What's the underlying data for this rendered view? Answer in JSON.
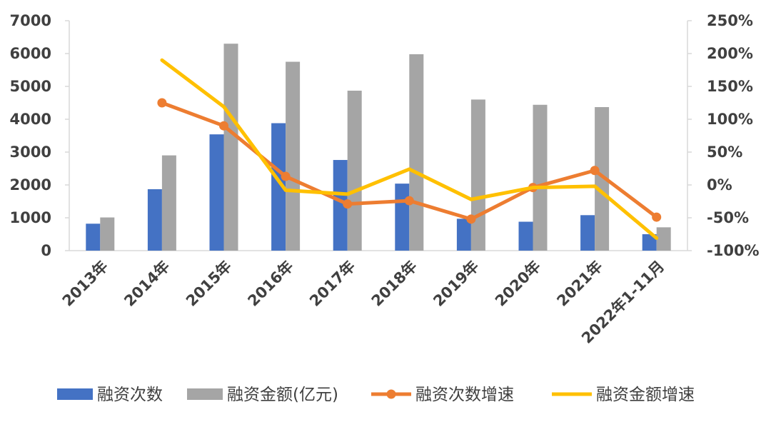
{
  "chart_data": {
    "type": "bar",
    "categories": [
      "2013年",
      "2014年",
      "2015年",
      "2016年",
      "2017年",
      "2018年",
      "2019年",
      "2020年",
      "2021年",
      "2022年1-11月"
    ],
    "series": [
      {
        "name": "融资次数",
        "type": "bar",
        "axis": "left",
        "color": "#4472C4",
        "values": [
          820,
          1870,
          3540,
          3880,
          2760,
          2040,
          970,
          880,
          1080,
          500
        ]
      },
      {
        "name": "融资金额(亿元)",
        "type": "bar",
        "axis": "left",
        "color": "#A5A5A5",
        "values": [
          1010,
          2900,
          6300,
          5750,
          4870,
          5980,
          4600,
          4440,
          4370,
          710
        ]
      },
      {
        "name": "融资次数增速",
        "type": "line",
        "axis": "right",
        "color": "#ED7D31",
        "markers": true,
        "values": [
          null,
          125,
          90,
          13,
          -29,
          -24,
          -52,
          -4,
          22,
          -49
        ]
      },
      {
        "name": "融资金额增速",
        "type": "line",
        "axis": "right",
        "color": "#FFC000",
        "markers": false,
        "values": [
          null,
          190,
          119,
          -8,
          -14,
          24,
          -22,
          -4,
          -2,
          -81
        ]
      }
    ],
    "y_left": {
      "min": 0,
      "max": 7000,
      "step": 1000,
      "tick_labels": [
        "0",
        "1000",
        "2000",
        "3000",
        "4000",
        "5000",
        "6000",
        "7000"
      ]
    },
    "y_right": {
      "min": -100,
      "max": 250,
      "step": 50,
      "tick_labels": [
        "-100%",
        "-50%",
        "0%",
        "50%",
        "100%",
        "150%",
        "200%",
        "250%"
      ]
    },
    "grid": false,
    "legend_position": "bottom"
  }
}
